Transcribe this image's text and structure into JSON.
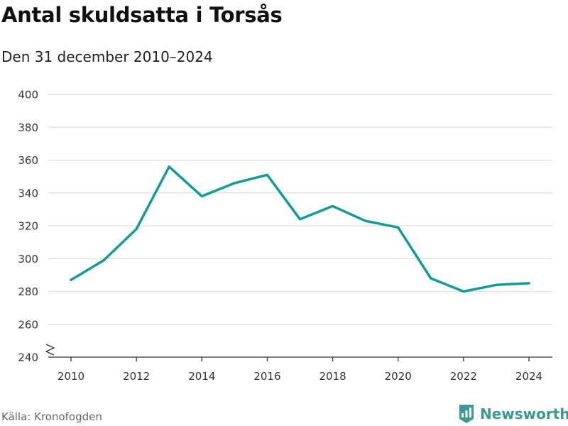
{
  "title": "Antal skuldsatta i Torsås",
  "subtitle": "Den 31 december 2010–2024",
  "source": "Källa: Kronofogden",
  "brand": {
    "name": "Newsworthy",
    "icon": "newsworthy-logo-icon",
    "color": "#3a9a92"
  },
  "colors": {
    "line": "#139c96",
    "grid": "#dddddd",
    "axis": "#333333"
  },
  "chart_data": {
    "type": "line",
    "title": "Antal skuldsatta i Torsås",
    "subtitle": "Den 31 december 2010–2024",
    "xlabel": "",
    "ylabel": "",
    "x": [
      2010,
      2011,
      2012,
      2013,
      2014,
      2015,
      2016,
      2017,
      2018,
      2019,
      2020,
      2021,
      2022,
      2023,
      2024
    ],
    "values": [
      287,
      299,
      318,
      356,
      338,
      346,
      351,
      324,
      332,
      323,
      319,
      288,
      280,
      284,
      285
    ],
    "xlim": [
      2010,
      2024
    ],
    "ylim": [
      240,
      400
    ],
    "yticks": [
      240,
      260,
      280,
      300,
      320,
      340,
      360,
      380,
      400
    ],
    "xticks": [
      2010,
      2012,
      2014,
      2016,
      2018,
      2020,
      2022,
      2024
    ],
    "grid": true,
    "y_axis_break": true
  }
}
